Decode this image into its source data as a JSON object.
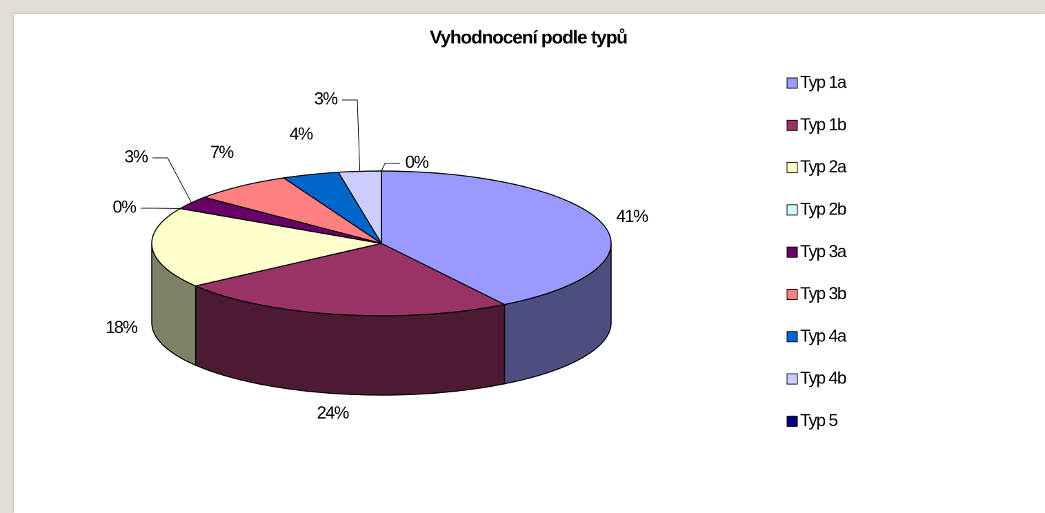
{
  "chart_data": {
    "type": "pie",
    "title": "Vyhodnocení podle typů",
    "categories": [
      "Typ 1a",
      "Typ 1b",
      "Typ 2a",
      "Typ 2b",
      "Typ 3a",
      "Typ 3b",
      "Typ 4a",
      "Typ 4b",
      "Typ 5"
    ],
    "values": [
      41,
      24,
      18,
      0,
      3,
      7,
      4,
      3,
      0
    ],
    "value_labels": [
      "41%",
      "24%",
      "18%",
      "0%",
      "3%",
      "7%",
      "4%",
      "3%",
      "0%"
    ],
    "colors": [
      "#9999ff",
      "#993366",
      "#ffffcc",
      "#ccffff",
      "#660066",
      "#ff8080",
      "#0066cc",
      "#ccccff",
      "#000080"
    ],
    "legend": "right"
  }
}
